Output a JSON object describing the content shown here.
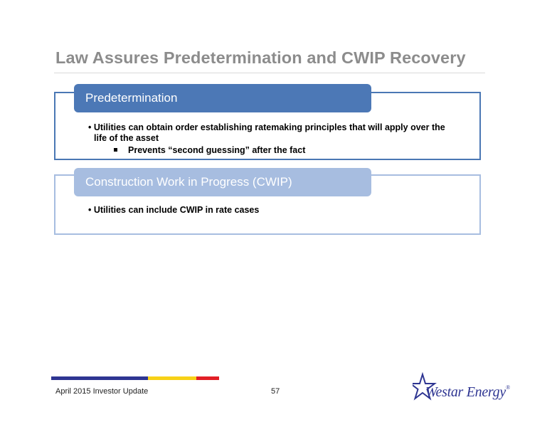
{
  "slide": {
    "title": "Law Assures Predetermination and CWIP Recovery"
  },
  "sections": [
    {
      "header": "Predetermination",
      "bullets": [
        "• Utilities can obtain order establishing ratemaking principles that will apply over the",
        "life of the asset"
      ],
      "sub_bullet": "Prevents “second guessing” after the fact"
    },
    {
      "header": "Construction Work in Progress (CWIP)",
      "bullets": [
        "• Utilities can include CWIP in rate cases"
      ]
    }
  ],
  "footer": {
    "left_text": "April 2015 Investor Update",
    "page_number": "57",
    "logo_text": "Westar Energy",
    "logo_icon": "star-icon",
    "bar_colors": [
      "#2e3592",
      "#f7d117",
      "#e21f26"
    ]
  }
}
